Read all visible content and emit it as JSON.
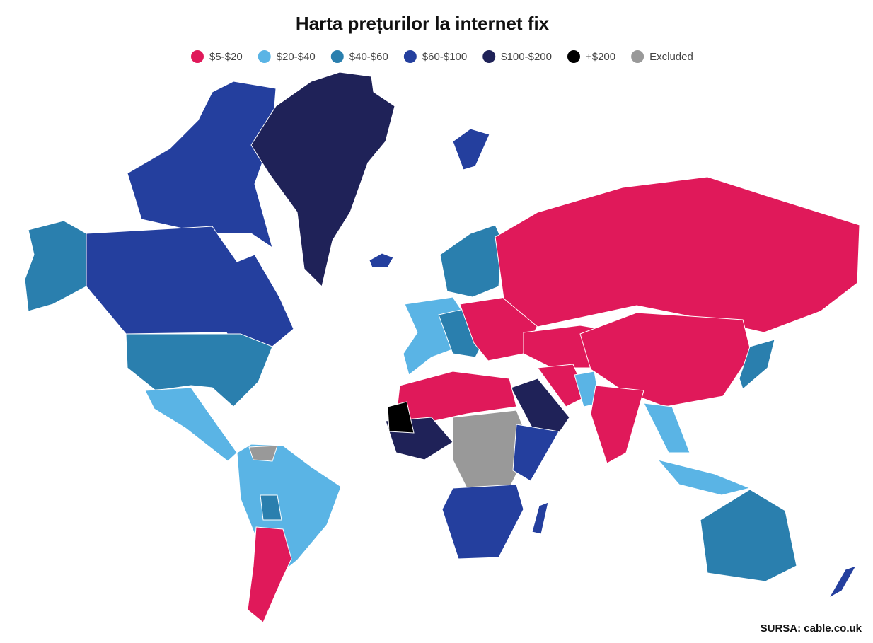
{
  "title": "Harta prețurilor la internet fix",
  "legend": [
    {
      "label": "$5-$20",
      "color": "#e0195a"
    },
    {
      "label": "$20-$40",
      "color": "#5ab4e5"
    },
    {
      "label": "$40-$60",
      "color": "#2a7fae"
    },
    {
      "label": "$60-$100",
      "color": "#243f9e"
    },
    {
      "label": "$100-$200",
      "color": "#1f2258"
    },
    {
      "label": "+$200",
      "color": "#000000"
    },
    {
      "label": "Excluded",
      "color": "#999999"
    }
  ],
  "source": "SURSA: cable.co.uk"
}
